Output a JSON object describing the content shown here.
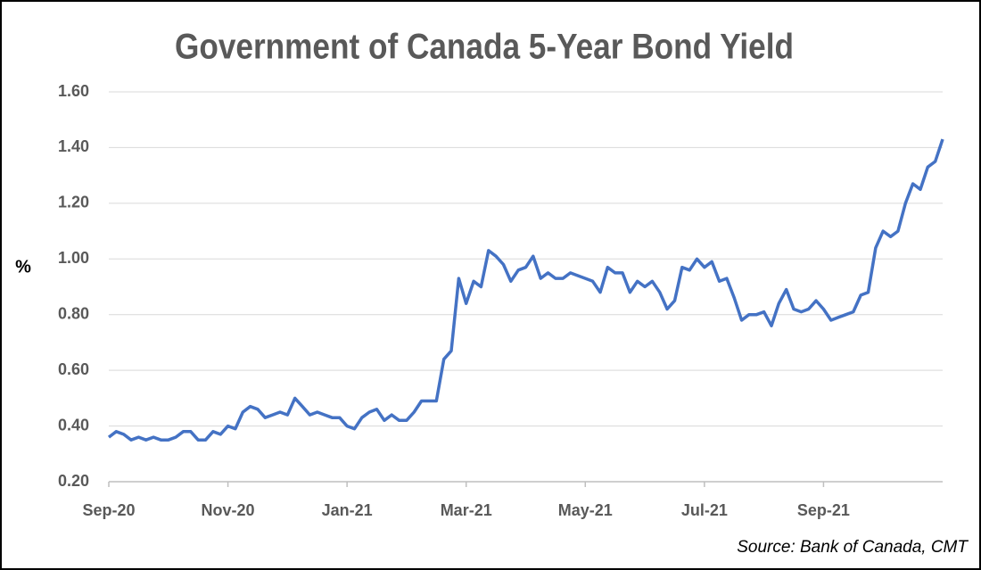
{
  "chart_data": {
    "type": "line",
    "title": "Government of Canada 5-Year Bond Yield",
    "y_label": "%",
    "source": "Source: Bank of Canada, CMT",
    "categories": [
      "Sep-20",
      null,
      null,
      null,
      null,
      null,
      null,
      null,
      null,
      null,
      null,
      null,
      null,
      null,
      null,
      null,
      "Nov-20",
      null,
      null,
      null,
      null,
      null,
      null,
      null,
      null,
      null,
      null,
      null,
      null,
      null,
      null,
      null,
      "Jan-21",
      null,
      null,
      null,
      null,
      null,
      null,
      null,
      null,
      null,
      null,
      null,
      null,
      null,
      null,
      null,
      "Mar-21",
      null,
      null,
      null,
      null,
      null,
      null,
      null,
      null,
      null,
      null,
      null,
      null,
      null,
      null,
      null,
      "May-21",
      null,
      null,
      null,
      null,
      null,
      null,
      null,
      null,
      null,
      null,
      null,
      null,
      null,
      null,
      null,
      "Jul-21",
      null,
      null,
      null,
      null,
      null,
      null,
      null,
      null,
      null,
      null,
      null,
      null,
      null,
      null,
      null,
      "Sep-21",
      null,
      null,
      null,
      null,
      null,
      null,
      null,
      null,
      null,
      null,
      null,
      null,
      null,
      null,
      null,
      null
    ],
    "series": [
      {
        "name": "5-Year Bond Yield",
        "color": "#4472c4",
        "values": [
          0.36,
          0.38,
          0.37,
          0.35,
          0.36,
          0.35,
          0.36,
          0.35,
          0.35,
          0.36,
          0.38,
          0.38,
          0.35,
          0.35,
          0.38,
          0.37,
          0.4,
          0.39,
          0.45,
          0.47,
          0.46,
          0.43,
          0.44,
          0.45,
          0.44,
          0.5,
          0.47,
          0.44,
          0.45,
          0.44,
          0.43,
          0.43,
          0.4,
          0.39,
          0.43,
          0.45,
          0.46,
          0.42,
          0.44,
          0.42,
          0.42,
          0.45,
          0.49,
          0.49,
          0.49,
          0.64,
          0.67,
          0.93,
          0.84,
          0.92,
          0.9,
          1.03,
          1.01,
          0.98,
          0.92,
          0.96,
          0.97,
          1.01,
          0.93,
          0.95,
          0.93,
          0.93,
          0.95,
          0.94,
          0.93,
          0.92,
          0.88,
          0.97,
          0.95,
          0.95,
          0.88,
          0.92,
          0.9,
          0.92,
          0.88,
          0.82,
          0.85,
          0.97,
          0.96,
          1.0,
          0.97,
          0.99,
          0.92,
          0.93,
          0.86,
          0.78,
          0.8,
          0.8,
          0.81,
          0.76,
          0.84,
          0.89,
          0.82,
          0.81,
          0.82,
          0.85,
          0.82,
          0.78,
          0.79,
          0.8,
          0.81,
          0.87,
          0.88,
          1.04,
          1.1,
          1.08,
          1.1,
          1.2,
          1.27,
          1.25,
          1.33,
          1.35,
          1.43
        ]
      }
    ],
    "ylim": [
      0.2,
      1.6
    ],
    "yticks": [
      {
        "value": 0.2,
        "label": "0.20"
      },
      {
        "value": 0.4,
        "label": "0.40"
      },
      {
        "value": 0.6,
        "label": "0.60"
      },
      {
        "value": 0.8,
        "label": "0.80"
      },
      {
        "value": 1.0,
        "label": "1.00"
      },
      {
        "value": 1.2,
        "label": "1.20"
      },
      {
        "value": 1.4,
        "label": "1.40"
      },
      {
        "value": 1.6,
        "label": "1.60"
      }
    ],
    "grid": true
  }
}
